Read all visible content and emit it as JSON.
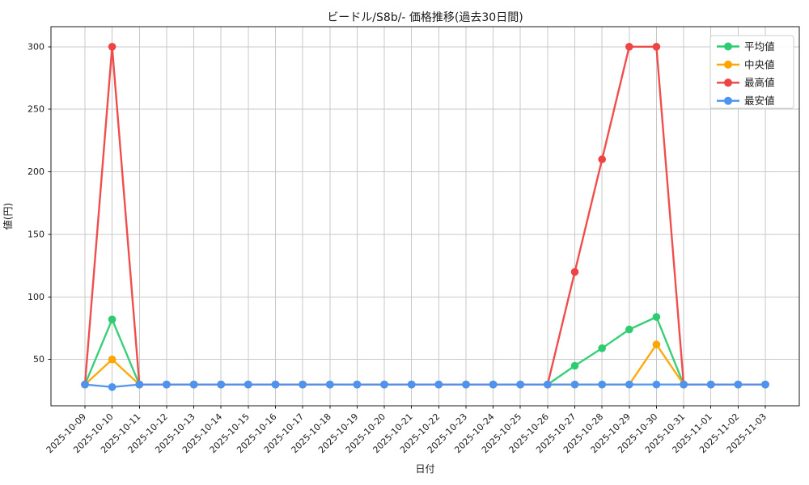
{
  "colors": {
    "grid": "#c9c9c9",
    "spine": "#1a1a1a",
    "text": "#1a1a1a",
    "background": "#ffffff",
    "legend_border": "#cccccc"
  },
  "chart_data": {
    "type": "line",
    "title": "ビードル/S8b/- 価格推移(過去30日間)",
    "xlabel": "日付",
    "ylabel": "値(円)",
    "grid": true,
    "legend_position": "upper right",
    "ylim": [
      13,
      316
    ],
    "yticks": [
      50,
      100,
      150,
      200,
      250,
      300
    ],
    "x": [
      "2025-10-09",
      "2025-10-10",
      "2025-10-11",
      "2025-10-12",
      "2025-10-13",
      "2025-10-14",
      "2025-10-15",
      "2025-10-16",
      "2025-10-17",
      "2025-10-18",
      "2025-10-19",
      "2025-10-20",
      "2025-10-21",
      "2025-10-22",
      "2025-10-23",
      "2025-10-24",
      "2025-10-25",
      "2025-10-26",
      "2025-10-27",
      "2025-10-28",
      "2025-10-29",
      "2025-10-30",
      "2025-10-31",
      "2025-11-01",
      "2025-11-02",
      "2025-11-03"
    ],
    "series": [
      {
        "key": "average",
        "name": "平均値",
        "color": "#2ecc71",
        "values": [
          30,
          82,
          30,
          30,
          30,
          30,
          30,
          30,
          30,
          30,
          30,
          30,
          30,
          30,
          30,
          30,
          30,
          30,
          45,
          59,
          74,
          84,
          30,
          30,
          30,
          30
        ]
      },
      {
        "key": "median",
        "name": "中央値",
        "color": "#ffa500",
        "values": [
          30,
          50,
          30,
          30,
          30,
          30,
          30,
          30,
          30,
          30,
          30,
          30,
          30,
          30,
          30,
          30,
          30,
          30,
          30,
          30,
          30,
          62,
          30,
          30,
          30,
          30
        ]
      },
      {
        "key": "max",
        "name": "最高値",
        "color": "#ef4444",
        "values": [
          30,
          300,
          30,
          30,
          30,
          30,
          30,
          30,
          30,
          30,
          30,
          30,
          30,
          30,
          30,
          30,
          30,
          30,
          120,
          210,
          300,
          300,
          30,
          30,
          30,
          30
        ]
      },
      {
        "key": "min",
        "name": "最安値",
        "color": "#4d94f0",
        "values": [
          30,
          28,
          30,
          30,
          30,
          30,
          30,
          30,
          30,
          30,
          30,
          30,
          30,
          30,
          30,
          30,
          30,
          30,
          30,
          30,
          30,
          30,
          30,
          30,
          30,
          30
        ]
      }
    ]
  }
}
